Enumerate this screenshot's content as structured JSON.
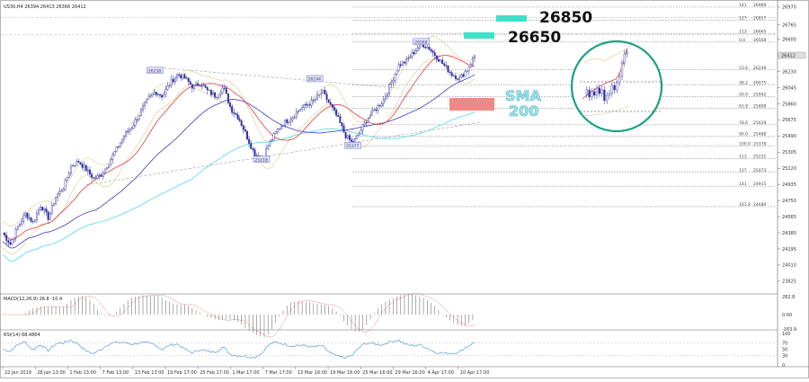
{
  "header": {
    "symbol_line": "US30,H4  26394  26413  26366  26412",
    "macd_label": "MACD(12,26,9) 26.8 -10.4",
    "rsi_label": "RSI(14) 68.4864"
  },
  "annotations": {
    "target_high": "26850",
    "target_mid": "26650",
    "sma_line1": "SMA",
    "sma_line2": "200",
    "current_price": "26412"
  },
  "colors": {
    "candle": "#2a2aa0",
    "sma50": "#e03a3a",
    "sma100": "#3a3ac0",
    "sma200": "#7fe0ec",
    "bollinger": "#d8c98a",
    "macd": "#cc2222",
    "rsi": "#3a8ad8",
    "circle": "#1aa080",
    "target_box": "#3ee0c8",
    "support_box": "#f08888"
  },
  "chart_data": {
    "type": "candlestick",
    "x_ticks": [
      "22 Jan 2019",
      "28 Jan 13:00",
      "1 Feb 13:00",
      "7 Feb 13:00",
      "13 Feb 13:00",
      "19 Feb 17:00",
      "25 Feb 17:00",
      "1 Mar 17:00",
      "7 Mar 17:00",
      "13 Mar 16:00",
      "19 Mar 16:00",
      "25 Mar 16:00",
      "29 Mar 16:00",
      "4 Apr 17:00",
      "10 Apr 17:00"
    ],
    "y_ticks": [
      26970,
      26765,
      26600,
      26412,
      26230,
      26045,
      25860,
      25675,
      25490,
      25305,
      25120,
      24935,
      24750,
      24565,
      24380,
      24195,
      24010,
      23825
    ],
    "ylim": [
      23700,
      27020
    ],
    "close_path": [
      [
        0,
        24380
      ],
      [
        2,
        24250
      ],
      [
        4,
        24450
      ],
      [
        6,
        24600
      ],
      [
        8,
        24500
      ],
      [
        10,
        24700
      ],
      [
        12,
        24550
      ],
      [
        14,
        24800
      ],
      [
        16,
        24900
      ],
      [
        18,
        25150
      ],
      [
        20,
        25200
      ],
      [
        22,
        25100
      ],
      [
        24,
        25000
      ],
      [
        26,
        25050
      ],
      [
        28,
        25200
      ],
      [
        30,
        25350
      ],
      [
        32,
        25500
      ],
      [
        34,
        25600
      ],
      [
        36,
        25750
      ],
      [
        38,
        25900
      ],
      [
        40,
        26000
      ],
      [
        42,
        25950
      ],
      [
        44,
        26100
      ],
      [
        46,
        26200
      ],
      [
        48,
        26150
      ],
      [
        50,
        26050
      ],
      [
        52,
        26100
      ],
      [
        54,
        26000
      ],
      [
        56,
        25950
      ],
      [
        58,
        26050
      ],
      [
        60,
        25800
      ],
      [
        62,
        25700
      ],
      [
        64,
        25500
      ],
      [
        66,
        25300
      ],
      [
        68,
        25220
      ],
      [
        70,
        25400
      ],
      [
        72,
        25550
      ],
      [
        74,
        25650
      ],
      [
        76,
        25700
      ],
      [
        78,
        25800
      ],
      [
        80,
        25850
      ],
      [
        82,
        25900
      ],
      [
        84,
        26000
      ],
      [
        86,
        25850
      ],
      [
        88,
        25700
      ],
      [
        90,
        25500
      ],
      [
        92,
        25400
      ],
      [
        94,
        25550
      ],
      [
        96,
        25700
      ],
      [
        98,
        25800
      ],
      [
        100,
        25900
      ],
      [
        102,
        26100
      ],
      [
        104,
        26300
      ],
      [
        106,
        26350
      ],
      [
        108,
        26450
      ],
      [
        110,
        26550
      ],
      [
        112,
        26500
      ],
      [
        114,
        26400
      ],
      [
        116,
        26300
      ],
      [
        118,
        26200
      ],
      [
        120,
        26150
      ],
      [
        122,
        26250
      ],
      [
        124,
        26412
      ]
    ],
    "price_labels": [
      {
        "label": "26238",
        "x": 40,
        "y": 26238
      },
      {
        "label": "26144",
        "x": 82,
        "y": 26144
      },
      {
        "label": "25218",
        "x": 68,
        "y": 25218
      },
      {
        "label": "25377",
        "x": 92,
        "y": 25377
      },
      {
        "label": "26568",
        "x": 110,
        "y": 26568
      }
    ],
    "fibonacci": [
      {
        "level": "141",
        "price": "26969",
        "value": 26969
      },
      {
        "level": "127",
        "price": "26817",
        "value": 26817
      },
      {
        "level": "113",
        "price": "26665",
        "value": 26665
      },
      {
        "level": "0.0",
        "price": "26568",
        "value": 26568
      },
      {
        "level": "23.6",
        "price": "26249",
        "value": 26249
      },
      {
        "level": "38.2",
        "price": "26075",
        "value": 26075
      },
      {
        "level": "50.0",
        "price": "25942",
        "value": 25942
      },
      {
        "level": "61.8",
        "price": "25808",
        "value": 25808
      },
      {
        "level": "78.6",
        "price": "25619",
        "value": 25619
      },
      {
        "level": "90.0",
        "price": "25488",
        "value": 25488
      },
      {
        "level": "100.0",
        "price": "25378",
        "value": 25378
      },
      {
        "level": "113",
        "price": "25231",
        "value": 25231
      },
      {
        "level": "127",
        "price": "25073",
        "value": 25073
      },
      {
        "level": "141",
        "price": "24915",
        "value": 24915
      },
      {
        "level": "161.8",
        "price": "24680",
        "value": 24680
      }
    ],
    "macd_ticks": [
      "282.8",
      "0.00",
      "-163.9"
    ],
    "rsi_ticks": [
      "100",
      "70",
      "50",
      "30",
      "0"
    ]
  }
}
